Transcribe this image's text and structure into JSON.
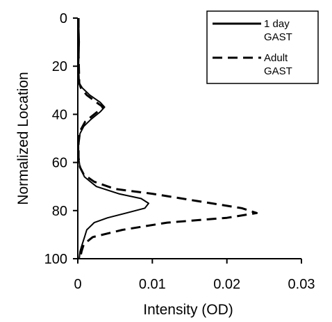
{
  "chart_data": {
    "type": "line",
    "title": "",
    "xlabel": "Intensity (OD)",
    "ylabel": "Normalized Location",
    "xlim": [
      0,
      0.03
    ],
    "ylim": [
      0,
      100
    ],
    "y_inverted": true,
    "x_ticks": [
      0,
      0.01,
      0.02,
      0.03
    ],
    "x_tick_labels": [
      "0",
      "0.01",
      "0.02",
      "0.03"
    ],
    "y_ticks": [
      0,
      20,
      40,
      60,
      80,
      100
    ],
    "y_tick_labels": [
      "0",
      "20",
      "40",
      "60",
      "80",
      "100"
    ],
    "grid": false,
    "legend_position": "top-right",
    "series": [
      {
        "name": "1 day GAST",
        "style": "solid",
        "color": "#000000",
        "points": [
          [
            0.0001,
            0
          ],
          [
            0.0002,
            10
          ],
          [
            0.0001,
            20
          ],
          [
            0.0002,
            27
          ],
          [
            0.0006,
            29
          ],
          [
            0.0016,
            32
          ],
          [
            0.003,
            35
          ],
          [
            0.0036,
            37
          ],
          [
            0.003,
            39
          ],
          [
            0.0018,
            42
          ],
          [
            0.0008,
            45
          ],
          [
            0.0003,
            48
          ],
          [
            0.0001,
            52
          ],
          [
            0.0001,
            58
          ],
          [
            0.0003,
            62
          ],
          [
            0.0009,
            66
          ],
          [
            0.0025,
            70
          ],
          [
            0.0055,
            73
          ],
          [
            0.0085,
            75
          ],
          [
            0.0095,
            77
          ],
          [
            0.009,
            79
          ],
          [
            0.0065,
            81
          ],
          [
            0.004,
            83
          ],
          [
            0.0022,
            85
          ],
          [
            0.0012,
            88
          ],
          [
            0.0009,
            91
          ],
          [
            0.0006,
            94
          ],
          [
            0.0003,
            97
          ],
          [
            0.0002,
            100
          ]
        ]
      },
      {
        "name": "Adult GAST",
        "style": "dashed",
        "color": "#000000",
        "points": [
          [
            0.0001,
            0
          ],
          [
            0.0001,
            15
          ],
          [
            0.0002,
            27
          ],
          [
            0.0004,
            29
          ],
          [
            0.0012,
            32
          ],
          [
            0.0025,
            35
          ],
          [
            0.0034,
            37
          ],
          [
            0.0022,
            40
          ],
          [
            0.001,
            43
          ],
          [
            0.0003,
            47
          ],
          [
            0.0001,
            52
          ],
          [
            0.0001,
            58
          ],
          [
            0.0003,
            62
          ],
          [
            0.0008,
            65
          ],
          [
            0.0022,
            68
          ],
          [
            0.005,
            71
          ],
          [
            0.01,
            73
          ],
          [
            0.016,
            76
          ],
          [
            0.022,
            79
          ],
          [
            0.024,
            81
          ],
          [
            0.02,
            83
          ],
          [
            0.012,
            85
          ],
          [
            0.006,
            88
          ],
          [
            0.002,
            91
          ],
          [
            0.0008,
            94
          ],
          [
            0.0005,
            97
          ],
          [
            0.0003,
            100
          ]
        ]
      }
    ],
    "legend": [
      {
        "line1": "1 day",
        "line2": "GAST",
        "style": "solid"
      },
      {
        "line1": "Adult",
        "line2": "GAST",
        "style": "dashed"
      }
    ]
  }
}
